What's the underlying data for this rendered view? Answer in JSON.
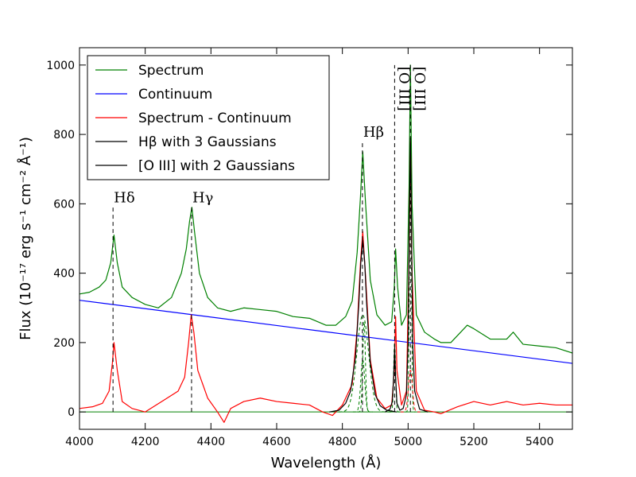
{
  "chart_data": {
    "type": "line",
    "xlabel": "Wavelength (Å)",
    "ylabel": "Flux (10⁻¹⁷ erg s⁻¹ cm⁻² Å⁻¹)",
    "xlim": [
      4000,
      5500
    ],
    "ylim": [
      -50,
      1050
    ],
    "xticks": [
      4000,
      4200,
      4400,
      4600,
      4800,
      5000,
      5200,
      5400
    ],
    "yticks": [
      0,
      200,
      400,
      600,
      800,
      1000
    ],
    "legend_position": "top-left",
    "series": [
      {
        "name": "Spectrum",
        "color": "#008000",
        "x": [
          4000,
          4030,
          4060,
          4080,
          4095,
          4105,
          4115,
          4130,
          4160,
          4200,
          4240,
          4280,
          4310,
          4325,
          4335,
          4342,
          4350,
          4365,
          4390,
          4420,
          4460,
          4500,
          4550,
          4600,
          4650,
          4700,
          4750,
          4780,
          4810,
          4830,
          4845,
          4855,
          4862,
          4870,
          4885,
          4905,
          4930,
          4950,
          4958,
          4962,
          4968,
          4980,
          4995,
          5003,
          5007,
          5012,
          5025,
          5050,
          5080,
          5100,
          5130,
          5160,
          5180,
          5200,
          5250,
          5300,
          5320,
          5350,
          5400,
          5450,
          5500
        ],
        "values": [
          340,
          345,
          360,
          380,
          430,
          510,
          430,
          360,
          330,
          310,
          300,
          330,
          400,
          470,
          550,
          590,
          520,
          400,
          330,
          300,
          290,
          300,
          295,
          290,
          275,
          270,
          250,
          250,
          275,
          320,
          460,
          620,
          750,
          610,
          380,
          280,
          250,
          260,
          360,
          470,
          360,
          250,
          280,
          650,
          1000,
          600,
          280,
          230,
          210,
          200,
          200,
          230,
          250,
          240,
          210,
          210,
          230,
          195,
          190,
          185,
          170
        ]
      },
      {
        "name": "Continuum",
        "color": "#0000ff",
        "x": [
          4000,
          5500
        ],
        "values": [
          322,
          140
        ]
      },
      {
        "name": "Spectrum - Continuum",
        "color": "#ff0000",
        "x": [
          4000,
          4040,
          4070,
          4090,
          4100,
          4105,
          4115,
          4130,
          4160,
          4200,
          4250,
          4300,
          4320,
          4332,
          4340,
          4348,
          4360,
          4390,
          4420,
          4440,
          4460,
          4500,
          4550,
          4600,
          4650,
          4700,
          4740,
          4770,
          4800,
          4830,
          4845,
          4855,
          4862,
          4870,
          4885,
          4905,
          4930,
          4950,
          4958,
          4962,
          4966,
          4980,
          4995,
          5003,
          5007,
          5012,
          5025,
          5050,
          5080,
          5100,
          5150,
          5200,
          5250,
          5300,
          5350,
          5400,
          5450,
          5500
        ],
        "values": [
          10,
          15,
          25,
          60,
          140,
          200,
          120,
          30,
          10,
          0,
          30,
          60,
          100,
          200,
          280,
          230,
          120,
          40,
          0,
          -30,
          10,
          30,
          40,
          30,
          25,
          20,
          0,
          -10,
          20,
          80,
          240,
          430,
          520,
          400,
          150,
          40,
          10,
          20,
          120,
          275,
          120,
          20,
          60,
          450,
          780,
          400,
          60,
          5,
          0,
          -5,
          15,
          30,
          20,
          30,
          20,
          25,
          20,
          20
        ]
      },
      {
        "name": "Hβ with 3 Gaussians",
        "color": "#000000",
        "x": [
          4760,
          4790,
          4810,
          4825,
          4840,
          4850,
          4856,
          4862,
          4868,
          4874,
          4885,
          4900,
          4915,
          4935,
          4965
        ],
        "values": [
          0,
          5,
          25,
          60,
          160,
          310,
          430,
          495,
          430,
          310,
          140,
          50,
          18,
          5,
          0
        ]
      },
      {
        "name": "[O III] with 2 Gaussians",
        "color": "#000000",
        "x": [
          4930,
          4945,
          4952,
          4956,
          4959,
          4962,
          4966,
          4975,
          4985,
          4995,
          5000,
          5004,
          5007,
          5010,
          5014,
          5020,
          5035,
          5060
        ],
        "values": [
          0,
          8,
          30,
          100,
          185,
          100,
          25,
          5,
          10,
          50,
          200,
          560,
          790,
          560,
          200,
          60,
          8,
          0
        ]
      }
    ],
    "dashed_components": [
      {
        "color": "#008000",
        "center": 4862,
        "width": 18,
        "peak": 280
      },
      {
        "color": "#008000",
        "center": 4866,
        "width": 4,
        "peak": 260
      },
      {
        "color": "#008000",
        "center": 4862,
        "width": 6,
        "peak": 150
      },
      {
        "color": "#008000",
        "center": 4959,
        "width": 3,
        "peak": 200
      },
      {
        "color": "#008000",
        "center": 5007,
        "width": 3,
        "peak": 760
      },
      {
        "color": "#ff0000",
        "center": 5007,
        "width": 6,
        "peak": 120
      }
    ],
    "line_markers": [
      {
        "label": "Hδ",
        "x": 4102,
        "y_top": 590
      },
      {
        "label": "Hγ",
        "x": 4341,
        "y_top": 590
      },
      {
        "label": "Hβ",
        "x": 4861,
        "y_top": 780
      },
      {
        "label": "[O III]",
        "x": 4959,
        "y_top": 1000,
        "rotated": true
      },
      {
        "label": "[O III]",
        "x": 5007,
        "y_top": 1000,
        "rotated": true
      }
    ]
  }
}
